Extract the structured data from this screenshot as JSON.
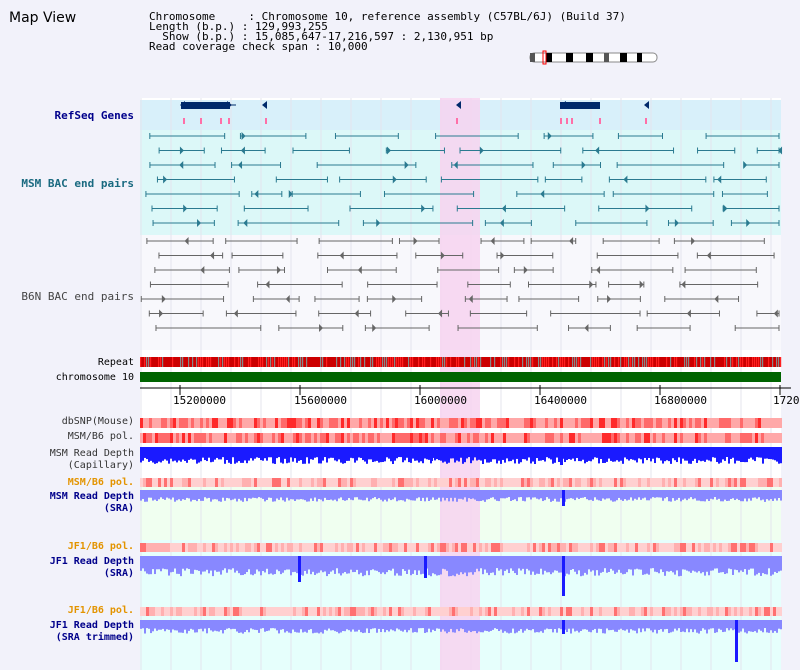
{
  "title": "Map View",
  "header": {
    "chromosome_label": "Chromosome    ",
    "chromosome_value": "Chromosome 10, reference assembly (C57BL/6J) (Build 37)",
    "length_label": "Length (b.p.)",
    "length_value": "129,993,255",
    "show_label": "  Show (b.p.)",
    "show_value": "15,085,647-17,216,597 : 2,130,951 bp",
    "coverage_label": "Read coverage check span",
    "coverage_value": "10,000"
  },
  "tracks": {
    "refseq": "RefSeq Genes",
    "msm_bac": "MSM BAC end pairs",
    "b6n_bac": "B6N BAC end pairs",
    "repeat": "Repeat",
    "chromosome": "chromosome 10",
    "dbsnp": "dbSNP(Mouse)",
    "msm_b6_pol": "MSM/B6 pol.",
    "msm_read_depth_cap": "MSM Read Depth",
    "capillary": "(Capillary)",
    "msm_b6_pol2": "MSM/B6 pol.",
    "msm_read_depth_sra": "MSM Read Depth",
    "sra": "(SRA)",
    "jf1_b6_pol": "JF1/B6 pol.",
    "jf1_read_depth_sra": "JF1 Read Depth",
    "sra_trimmed": "(SRA trimmed)"
  },
  "axis": {
    "ticks": [
      "15200000",
      "15600000",
      "16000000",
      "16400000",
      "16800000",
      "1720"
    ]
  },
  "colors": {
    "highlight": "#f7d4f0",
    "refseq_band": "#d8f0fa",
    "msm_band": "#dcf8f8",
    "gene": "#002a6b",
    "pink_marks": "#ff6fa8",
    "chromosome_bar": "#006400",
    "read_depth": "#1a1aff",
    "read_depth_light": "#8888ff"
  }
}
